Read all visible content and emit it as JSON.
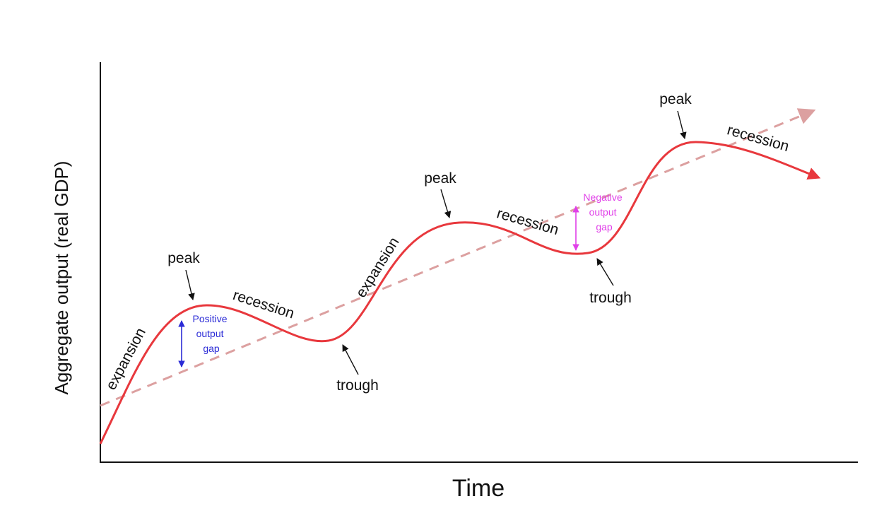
{
  "axes": {
    "x_label": "Time",
    "y_label": "Aggregate output (real GDP)"
  },
  "labels": {
    "peak_1": "peak",
    "peak_2": "peak",
    "peak_3": "peak",
    "trough_1": "trough",
    "trough_2": "trough",
    "expansion_1": "expansion",
    "expansion_2": "expansion",
    "recession_1": "recession",
    "recession_2": "recession",
    "recession_3": "recession"
  },
  "gaps": {
    "positive": [
      "Positive",
      "output",
      "gap"
    ],
    "negative": [
      "Negative",
      "output",
      "gap"
    ]
  },
  "colors": {
    "cycle_curve": "#e8383d",
    "trend_line": "#dca0a0",
    "axis": "#111111",
    "positive_gap": "#2b2bd6",
    "negative_gap": "#e040e8"
  }
}
